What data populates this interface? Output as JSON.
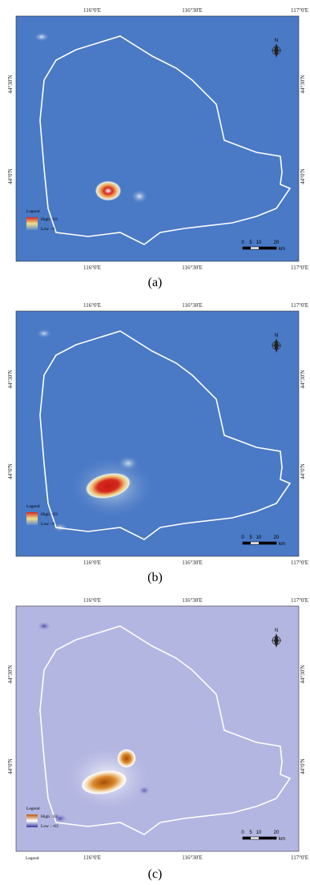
{
  "axes": {
    "top_lon": [
      "116°0'E",
      "116°30'E",
      "117°0'E"
    ],
    "bottom_lon": [
      "116°0'E",
      "116°30'E",
      "117°0'E"
    ],
    "lat": [
      "44°30'N",
      "44°0'N"
    ]
  },
  "north_label": "N",
  "scale_bar": {
    "ticks": [
      "0",
      "5",
      "10",
      "20"
    ],
    "unit": "km"
  },
  "panels": [
    {
      "id": "a",
      "caption": "(a)",
      "legend_title": "Legend",
      "high_label": "High : 63",
      "low_label": "Low : 0",
      "colors": {
        "background": "#4a79c6",
        "high": "#d42a1f",
        "mid": "#f0e08a",
        "low": "#5a86cc"
      }
    },
    {
      "id": "b",
      "caption": "(b)",
      "legend_title": "Legend",
      "high_label": "High : 63",
      "low_label": "Low : 0",
      "colors": {
        "background": "#4a79c6",
        "high": "#d42a1f",
        "mid": "#f0e08a",
        "low": "#5a86cc"
      }
    },
    {
      "id": "c",
      "caption": "(c)",
      "legend_title": "Legend",
      "high_label": "High : 63",
      "low_label": "Low : -63",
      "extra_label": "Legend",
      "colors": {
        "background": "#b4b6e2",
        "high": "#b65a0a",
        "mid": "#ffffff",
        "low": "#3535a0"
      }
    }
  ]
}
